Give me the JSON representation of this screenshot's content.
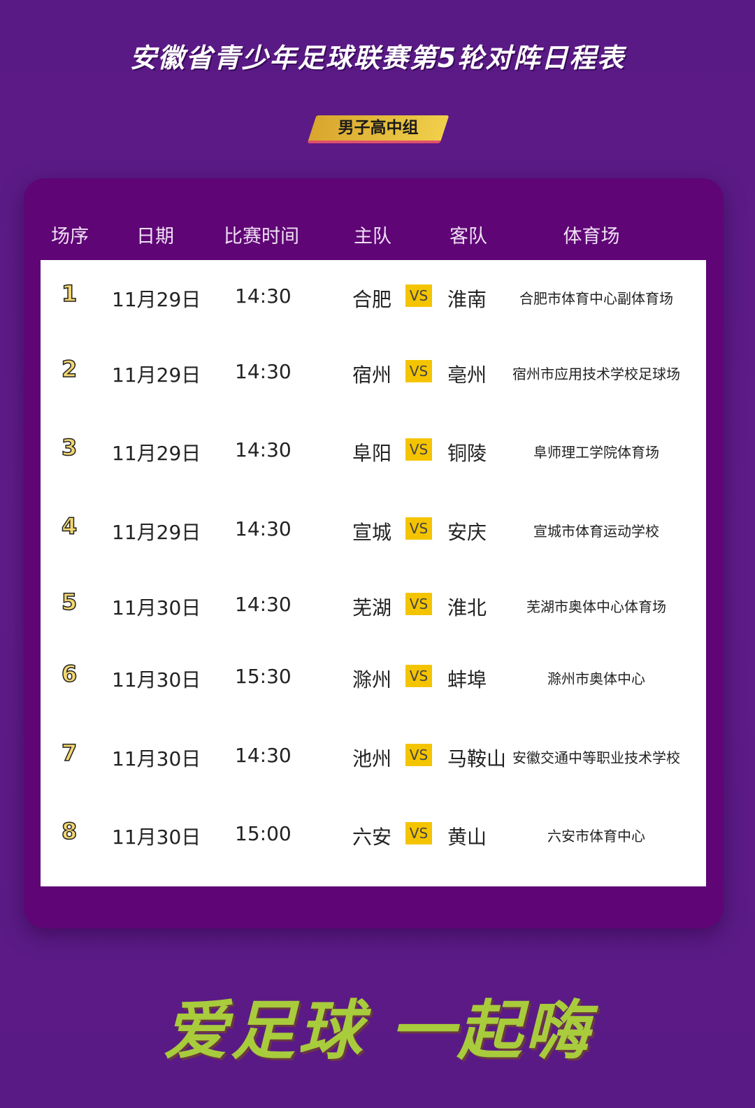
{
  "title": "安徽省青少年足球联赛第5轮对阵日程表",
  "group": "男子高中组",
  "headers": [
    "场序",
    "日期",
    "比赛时间",
    "主队",
    "客队",
    "体育场"
  ],
  "vs_label": "VS",
  "matches": [
    {
      "no": "1",
      "date": "11月29日",
      "time": "14:30",
      "home": "合肥",
      "away": "淮南",
      "venue": "合肥市体育中心副体育场"
    },
    {
      "no": "2",
      "date": "11月29日",
      "time": "14:30",
      "home": "宿州",
      "away": "亳州",
      "venue": "宿州市应用技术学校足球场"
    },
    {
      "no": "3",
      "date": "11月29日",
      "time": "14:30",
      "home": "阜阳",
      "away": "铜陵",
      "venue": "阜师理工学院体育场"
    },
    {
      "no": "4",
      "date": "11月29日",
      "time": "14:30",
      "home": "宣城",
      "away": "安庆",
      "venue": "宣城市体育运动学校"
    },
    {
      "no": "5",
      "date": "11月30日",
      "time": "14:30",
      "home": "芜湖",
      "away": "淮北",
      "venue": "芜湖市奥体中心体育场"
    },
    {
      "no": "6",
      "date": "11月30日",
      "time": "15:30",
      "home": "滁州",
      "away": "蚌埠",
      "venue": "滁州市奥体中心"
    },
    {
      "no": "7",
      "date": "11月30日",
      "time": "14:30",
      "home": "池州",
      "away": "马鞍山",
      "venue": "安徽交通中等职业技术学校"
    },
    {
      "no": "8",
      "date": "11月30日",
      "time": "15:00",
      "home": "六安",
      "away": "黄山",
      "venue": "六安市体育中心"
    }
  ],
  "slogan": "爱足球  一起嗨",
  "colors": {
    "background": "#5e1c88",
    "card": "#5f0576",
    "vs": "#f5c400",
    "slogan": "#a8cc3c",
    "badge": "#f0cf4a"
  }
}
